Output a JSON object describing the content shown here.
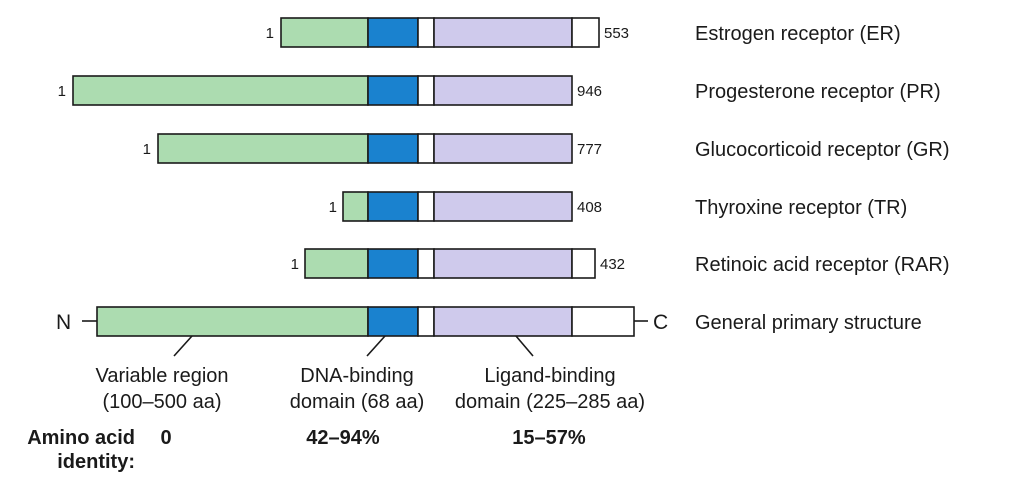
{
  "colors": {
    "variable": "#acdcb0",
    "dna": "#1a82cf",
    "hinge": "#ffffff",
    "ligand": "#cfcaec",
    "cterm": "#ffffff",
    "outline": "#1a1a1a"
  },
  "receptors": [
    {
      "name": "Estrogen receptor (ER)",
      "start": "1",
      "end": "553"
    },
    {
      "name": "Progesterone receptor (PR)",
      "start": "1",
      "end": "946"
    },
    {
      "name": "Glucocorticoid receptor (GR)",
      "start": "1",
      "end": "777"
    },
    {
      "name": "Thyroxine receptor (TR)",
      "start": "1",
      "end": "408"
    },
    {
      "name": "Retinoic acid receptor (RAR)",
      "start": "1",
      "end": "432"
    }
  ],
  "general": {
    "name": "General primary structure",
    "n_label": "N",
    "c_label": "C"
  },
  "regions": {
    "variable": {
      "line1": "Variable region",
      "line2": "(100–500 aa)"
    },
    "dna": {
      "line1": "DNA-binding",
      "line2": "domain (68 aa)"
    },
    "ligand": {
      "line1": "Ligand-binding",
      "line2": "domain (225–285 aa)"
    }
  },
  "identity": {
    "label_line1": "Amino acid",
    "label_line2": "identity:",
    "variable": "0",
    "dna": "42–94%",
    "ligand": "15–57%"
  }
}
